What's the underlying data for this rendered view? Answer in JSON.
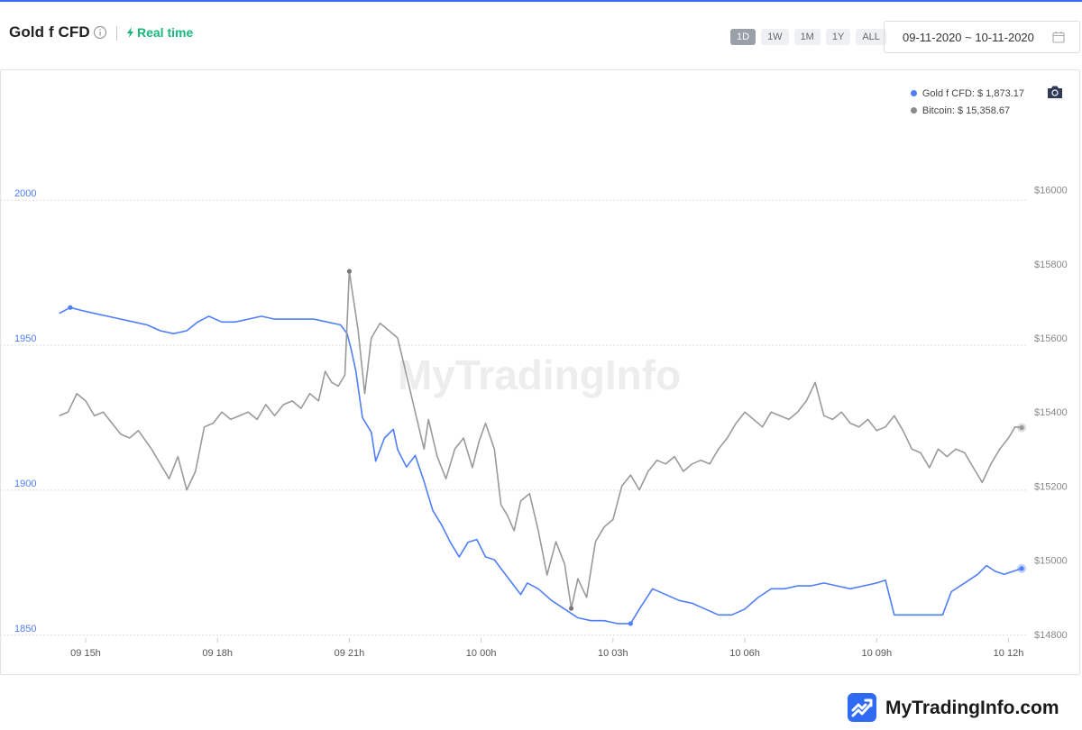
{
  "header": {
    "title": "Gold f CFD",
    "realtime_label": "Real time",
    "ranges": [
      {
        "label": "1D",
        "active": true
      },
      {
        "label": "1W",
        "active": false
      },
      {
        "label": "1M",
        "active": false
      },
      {
        "label": "1Y",
        "active": false
      },
      {
        "label": "ALL",
        "active": false
      }
    ],
    "date_range": "09-11-2020 ~ 10-11-2020"
  },
  "legend": {
    "gold": "Gold f CFD: $ 1,873.17",
    "bitcoin": "Bitcoin: $ 15,358.67"
  },
  "watermark": "MyTradingInfo",
  "footer": {
    "brand": "MyTradingInfo.com"
  },
  "colors": {
    "gold": "#4f7ef8",
    "bitcoin": "#9a9a9a",
    "accent": "#3b6cf5",
    "realtime": "#18b978"
  },
  "chart_data": {
    "type": "line",
    "x_ticks": [
      "09 15h",
      "09 18h",
      "09 21h",
      "10 00h",
      "10 03h",
      "10 06h",
      "10 09h",
      "10 12h"
    ],
    "x_range": [
      14.2,
      36.4
    ],
    "y_left": {
      "ticks": [
        "2000",
        "1950",
        "1900",
        "1850"
      ],
      "range": [
        1849,
        2010
      ]
    },
    "y_right": {
      "ticks": [
        "$16000",
        "$15800",
        "$15600",
        "$15400",
        "$15200",
        "$15000",
        "$14800"
      ],
      "range": [
        14790,
        16050
      ]
    },
    "grid": true,
    "legend_position": "top-right",
    "series": [
      {
        "name": "Gold f CFD",
        "axis": "left",
        "points": [
          [
            14.4,
            1961
          ],
          [
            14.65,
            1963
          ],
          [
            14.9,
            1962
          ],
          [
            15.2,
            1961
          ],
          [
            15.5,
            1960
          ],
          [
            15.8,
            1959
          ],
          [
            16.1,
            1958
          ],
          [
            16.4,
            1957
          ],
          [
            16.7,
            1955
          ],
          [
            17.0,
            1954
          ],
          [
            17.3,
            1955
          ],
          [
            17.55,
            1958
          ],
          [
            17.8,
            1960
          ],
          [
            18.1,
            1958
          ],
          [
            18.4,
            1958
          ],
          [
            18.7,
            1959
          ],
          [
            19.0,
            1960
          ],
          [
            19.3,
            1959
          ],
          [
            19.6,
            1959
          ],
          [
            19.9,
            1959
          ],
          [
            20.2,
            1959
          ],
          [
            20.5,
            1958
          ],
          [
            20.8,
            1957
          ],
          [
            20.95,
            1954
          ],
          [
            21.05,
            1948
          ],
          [
            21.15,
            1941
          ],
          [
            21.3,
            1925
          ],
          [
            21.5,
            1920
          ],
          [
            21.6,
            1910
          ],
          [
            21.8,
            1918
          ],
          [
            22.0,
            1921
          ],
          [
            22.1,
            1914
          ],
          [
            22.3,
            1908
          ],
          [
            22.5,
            1912
          ],
          [
            22.7,
            1903
          ],
          [
            22.9,
            1893
          ],
          [
            23.1,
            1888
          ],
          [
            23.3,
            1882
          ],
          [
            23.5,
            1877
          ],
          [
            23.7,
            1882
          ],
          [
            23.9,
            1883
          ],
          [
            24.1,
            1877
          ],
          [
            24.3,
            1876
          ],
          [
            24.5,
            1872
          ],
          [
            24.7,
            1868
          ],
          [
            24.9,
            1864
          ],
          [
            25.05,
            1868
          ],
          [
            25.3,
            1866
          ],
          [
            25.6,
            1862
          ],
          [
            25.9,
            1859
          ],
          [
            26.2,
            1856
          ],
          [
            26.5,
            1855
          ],
          [
            26.8,
            1855
          ],
          [
            27.1,
            1854
          ],
          [
            27.4,
            1854
          ],
          [
            27.6,
            1859
          ],
          [
            27.9,
            1866
          ],
          [
            28.2,
            1864
          ],
          [
            28.5,
            1862
          ],
          [
            28.8,
            1861
          ],
          [
            29.1,
            1859
          ],
          [
            29.4,
            1857
          ],
          [
            29.7,
            1857
          ],
          [
            30.0,
            1859
          ],
          [
            30.3,
            1863
          ],
          [
            30.6,
            1866
          ],
          [
            30.9,
            1866
          ],
          [
            31.2,
            1867
          ],
          [
            31.5,
            1867
          ],
          [
            31.8,
            1868
          ],
          [
            32.1,
            1867
          ],
          [
            32.4,
            1866
          ],
          [
            32.7,
            1867
          ],
          [
            33.0,
            1868
          ],
          [
            33.2,
            1869
          ],
          [
            33.4,
            1857
          ],
          [
            34.5,
            1857
          ],
          [
            34.7,
            1865
          ],
          [
            35.0,
            1868
          ],
          [
            35.3,
            1871
          ],
          [
            35.5,
            1874
          ],
          [
            35.7,
            1872
          ],
          [
            35.9,
            1871
          ],
          [
            36.1,
            1872
          ],
          [
            36.3,
            1873
          ]
        ]
      },
      {
        "name": "Bitcoin",
        "axis": "right",
        "points": [
          [
            14.4,
            15390
          ],
          [
            14.6,
            15400
          ],
          [
            14.8,
            15450
          ],
          [
            15.0,
            15430
          ],
          [
            15.2,
            15390
          ],
          [
            15.4,
            15400
          ],
          [
            15.6,
            15370
          ],
          [
            15.8,
            15340
          ],
          [
            16.0,
            15330
          ],
          [
            16.2,
            15350
          ],
          [
            16.5,
            15300
          ],
          [
            16.7,
            15260
          ],
          [
            16.9,
            15220
          ],
          [
            17.1,
            15280
          ],
          [
            17.3,
            15190
          ],
          [
            17.5,
            15240
          ],
          [
            17.7,
            15360
          ],
          [
            17.9,
            15370
          ],
          [
            18.1,
            15400
          ],
          [
            18.3,
            15380
          ],
          [
            18.5,
            15390
          ],
          [
            18.7,
            15400
          ],
          [
            18.9,
            15380
          ],
          [
            19.1,
            15420
          ],
          [
            19.3,
            15390
          ],
          [
            19.5,
            15420
          ],
          [
            19.7,
            15430
          ],
          [
            19.9,
            15410
          ],
          [
            20.1,
            15450
          ],
          [
            20.3,
            15430
          ],
          [
            20.45,
            15510
          ],
          [
            20.6,
            15480
          ],
          [
            20.75,
            15470
          ],
          [
            20.9,
            15500
          ],
          [
            21.0,
            15780
          ],
          [
            21.1,
            15700
          ],
          [
            21.2,
            15620
          ],
          [
            21.35,
            15450
          ],
          [
            21.5,
            15600
          ],
          [
            21.7,
            15640
          ],
          [
            21.9,
            15620
          ],
          [
            22.1,
            15600
          ],
          [
            22.3,
            15500
          ],
          [
            22.5,
            15400
          ],
          [
            22.7,
            15300
          ],
          [
            22.8,
            15380
          ],
          [
            23.0,
            15280
          ],
          [
            23.2,
            15220
          ],
          [
            23.4,
            15300
          ],
          [
            23.6,
            15330
          ],
          [
            23.8,
            15250
          ],
          [
            23.95,
            15320
          ],
          [
            24.1,
            15370
          ],
          [
            24.3,
            15300
          ],
          [
            24.45,
            15150
          ],
          [
            24.6,
            15120
          ],
          [
            24.75,
            15080
          ],
          [
            24.9,
            15160
          ],
          [
            25.1,
            15180
          ],
          [
            25.3,
            15080
          ],
          [
            25.5,
            14960
          ],
          [
            25.7,
            15050
          ],
          [
            25.9,
            14990
          ],
          [
            26.05,
            14870
          ],
          [
            26.2,
            14950
          ],
          [
            26.4,
            14900
          ],
          [
            26.6,
            15050
          ],
          [
            26.8,
            15090
          ],
          [
            27.0,
            15110
          ],
          [
            27.2,
            15200
          ],
          [
            27.4,
            15230
          ],
          [
            27.6,
            15190
          ],
          [
            27.8,
            15240
          ],
          [
            28.0,
            15270
          ],
          [
            28.2,
            15260
          ],
          [
            28.4,
            15280
          ],
          [
            28.6,
            15240
          ],
          [
            28.8,
            15260
          ],
          [
            29.0,
            15270
          ],
          [
            29.2,
            15260
          ],
          [
            29.4,
            15300
          ],
          [
            29.6,
            15330
          ],
          [
            29.8,
            15370
          ],
          [
            30.0,
            15400
          ],
          [
            30.2,
            15380
          ],
          [
            30.4,
            15360
          ],
          [
            30.6,
            15400
          ],
          [
            30.8,
            15390
          ],
          [
            31.0,
            15380
          ],
          [
            31.2,
            15400
          ],
          [
            31.4,
            15430
          ],
          [
            31.6,
            15480
          ],
          [
            31.8,
            15390
          ],
          [
            32.0,
            15380
          ],
          [
            32.2,
            15400
          ],
          [
            32.4,
            15370
          ],
          [
            32.6,
            15360
          ],
          [
            32.8,
            15380
          ],
          [
            33.0,
            15350
          ],
          [
            33.2,
            15360
          ],
          [
            33.4,
            15390
          ],
          [
            33.6,
            15350
          ],
          [
            33.8,
            15300
          ],
          [
            34.0,
            15290
          ],
          [
            34.2,
            15250
          ],
          [
            34.4,
            15300
          ],
          [
            34.6,
            15280
          ],
          [
            34.8,
            15300
          ],
          [
            35.0,
            15290
          ],
          [
            35.2,
            15250
          ],
          [
            35.4,
            15210
          ],
          [
            35.6,
            15260
          ],
          [
            35.8,
            15300
          ],
          [
            36.0,
            15330
          ],
          [
            36.15,
            15360
          ],
          [
            36.3,
            15358
          ]
        ]
      }
    ],
    "markers": [
      {
        "series": "Gold f CFD",
        "x": 14.65,
        "y": 1963,
        "kind": "high"
      },
      {
        "series": "Gold f CFD",
        "x": 27.4,
        "y": 1854,
        "kind": "low"
      },
      {
        "series": "Bitcoin",
        "x": 21.0,
        "y": 15780,
        "kind": "high"
      },
      {
        "series": "Bitcoin",
        "x": 26.05,
        "y": 14870,
        "kind": "low"
      }
    ]
  }
}
